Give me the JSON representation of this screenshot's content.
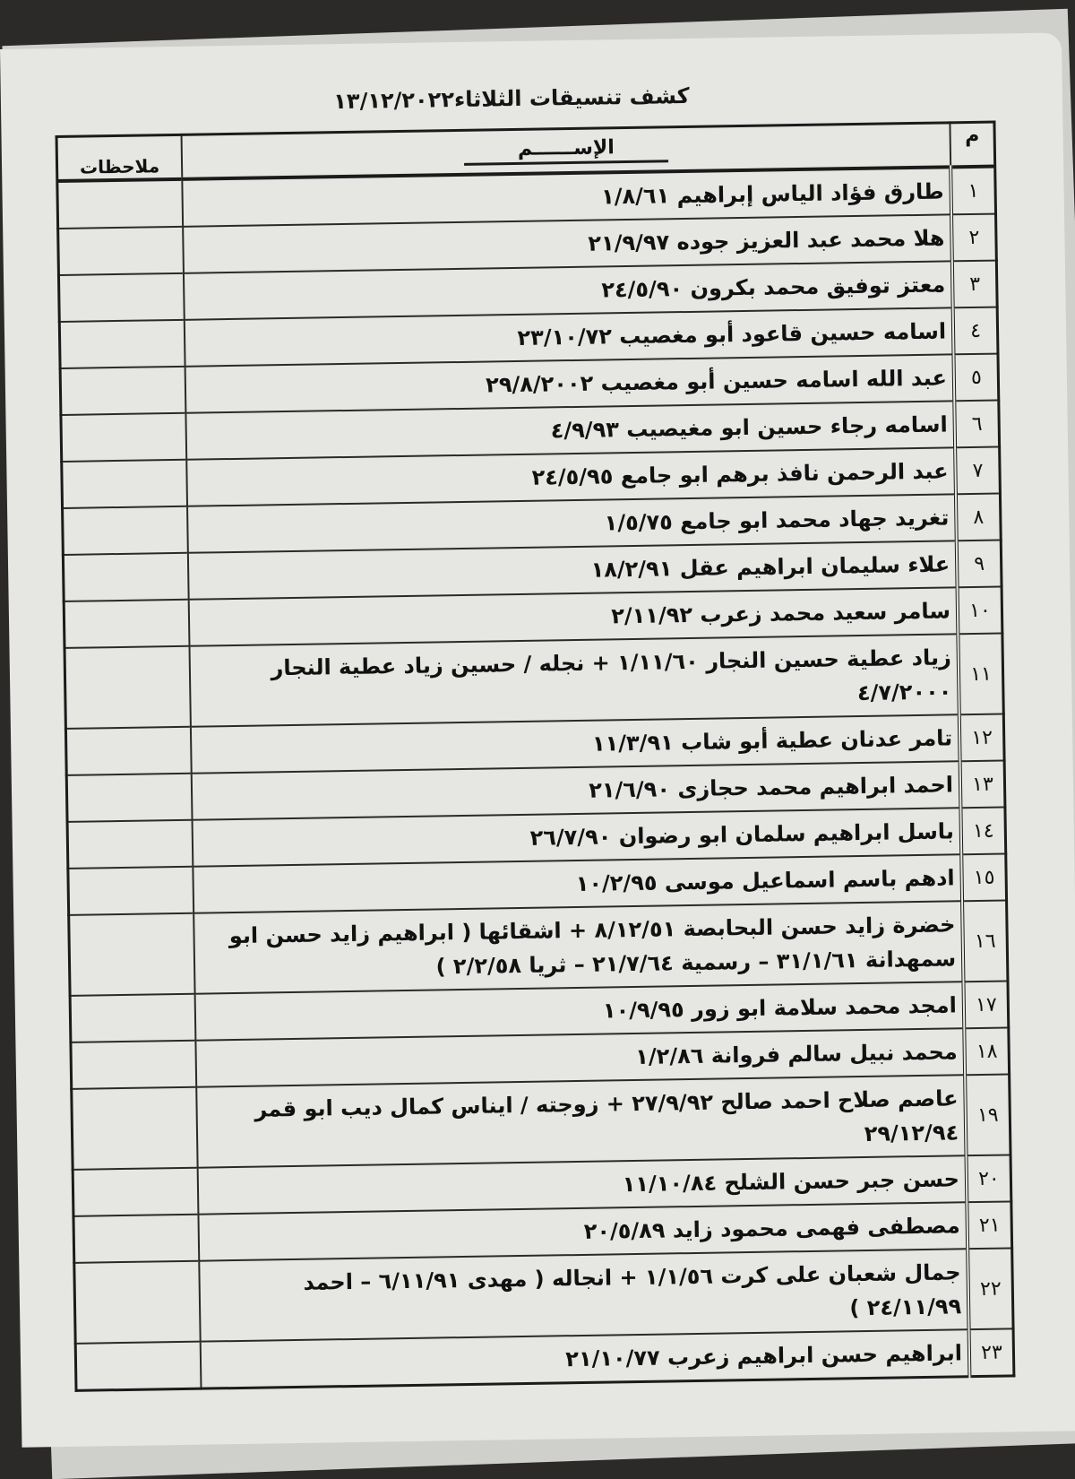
{
  "title": "كشف تنسيقات الثلاثاء١٣/١٢/٢٠٢٢",
  "columns": {
    "num": "م",
    "name": "الإســــــم",
    "notes": "ملاحظات"
  },
  "rows": [
    {
      "num": "١",
      "name": "طارق فؤاد الياس إبراهيم ١/٨/٦١",
      "notes": ""
    },
    {
      "num": "٢",
      "name": "هلا محمد عبد العزيز جوده ٢١/٩/٩٧",
      "notes": ""
    },
    {
      "num": "٣",
      "name": "معتز توفيق محمد بكرون ٢٤/٥/٩٠",
      "notes": ""
    },
    {
      "num": "٤",
      "name": "اسامه حسين قاعود أبو مغصيب ٢٣/١٠/٧٢",
      "notes": ""
    },
    {
      "num": "٥",
      "name": "عبد الله اسامه حسين أبو مغصيب   ٢٩/٨/٢٠٠٢",
      "notes": ""
    },
    {
      "num": "٦",
      "name": "اسامه رجاء حسين ابو مغيصيب ٤/٩/٩٣",
      "notes": ""
    },
    {
      "num": "٧",
      "name": "عبد الرحمن نافذ برهم ابو جامع ٢٤/٥/٩٥",
      "notes": ""
    },
    {
      "num": "٨",
      "name": "تغريد جهاد محمد ابو جامع ١/٥/٧٥",
      "notes": ""
    },
    {
      "num": "٩",
      "name": "علاء سليمان ابراهيم عقل ١٨/٢/٩١",
      "notes": ""
    },
    {
      "num": "١٠",
      "name": "سامر سعيد محمد زعرب ٢/١١/٩٢",
      "notes": ""
    },
    {
      "num": "١١",
      "name": "زياد عطية حسين النجار ١/١١/٦٠ + نجله / حسين زياد عطية النجار ٤/٧/٢٠٠٠",
      "notes": ""
    },
    {
      "num": "١٢",
      "name": "تامر عدنان عطية أبو شاب ١١/٣/٩١",
      "notes": ""
    },
    {
      "num": "١٣",
      "name": "احمد ابراهيم محمد حجازى ٢١/٦/٩٠",
      "notes": ""
    },
    {
      "num": "١٤",
      "name": "باسل ابراهيم سلمان ابو رضوان ٢٦/٧/٩٠",
      "notes": ""
    },
    {
      "num": "١٥",
      "name": "ادهم باسم اسماعيل موسى ١٠/٢/٩٥",
      "notes": ""
    },
    {
      "num": "١٦",
      "name": "خضرة زايد حسن البحابصة ٨/١٢/٥١ + اشقائها ( ابراهيم زايد حسن ابو سمهدانة ٣١/١/٦١ – رسمية ٢١/٧/٦٤ – ثريا ٢/٢/٥٨ )",
      "notes": ""
    },
    {
      "num": "١٧",
      "name": "امجد محمد سلامة ابو زور ١٠/٩/٩٥",
      "notes": ""
    },
    {
      "num": "١٨",
      "name": "محمد نبيل سالم فروانة ١/٢/٨٦",
      "notes": ""
    },
    {
      "num": "١٩",
      "name": "عاصم صلاح احمد صالح ٢٧/٩/٩٢ + زوجته / ايناس كمال ديب ابو قمر ٢٩/١٢/٩٤",
      "notes": ""
    },
    {
      "num": "٢٠",
      "name": "حسن جبر حسن الشلح ١١/١٠/٨٤",
      "notes": ""
    },
    {
      "num": "٢١",
      "name": "مصطفى فهمى محمود زايد ٢٠/٥/٨٩",
      "notes": ""
    },
    {
      "num": "٢٢",
      "name": "جمال شعبان على كرت ١/١/٥٦ + انجاله ( مهدى ٦/١١/٩١ – احمد ٢٤/١١/٩٩ )",
      "notes": ""
    },
    {
      "num": "٢٣",
      "name": "ابراهيم حسن ابراهيم زعرب ٢١/١٠/٧٧",
      "notes": ""
    }
  ]
}
